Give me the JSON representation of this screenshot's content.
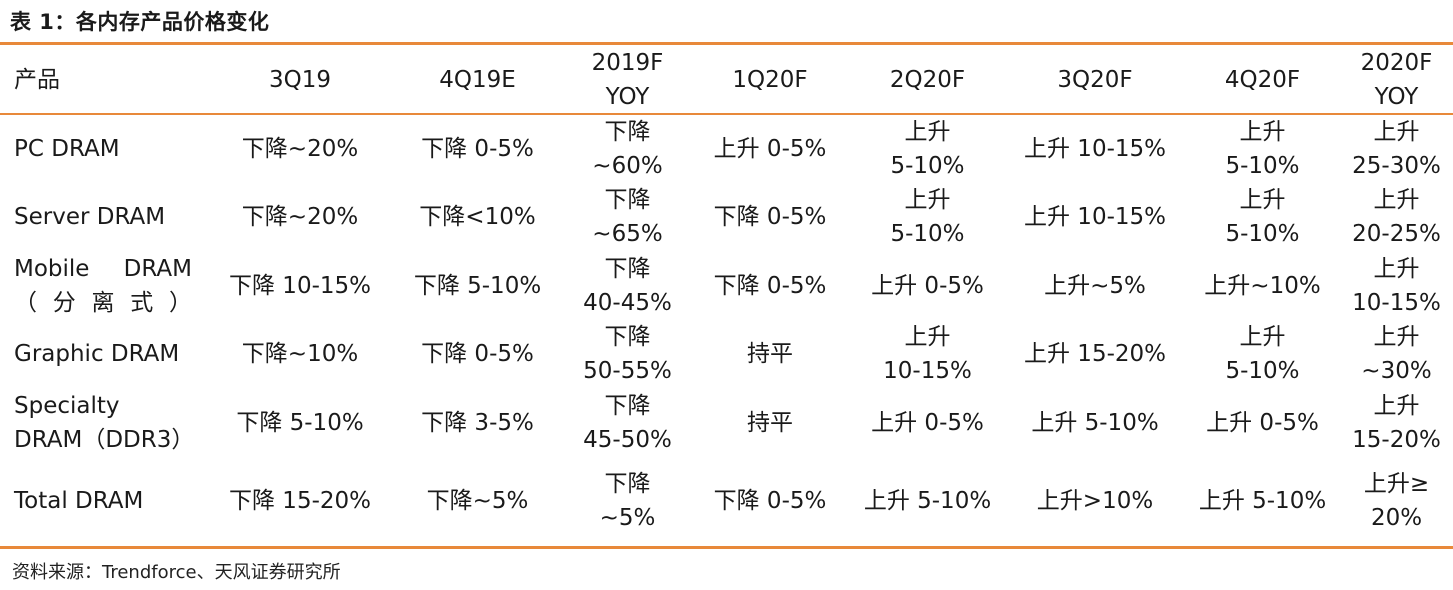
{
  "title": "表 1：各内存产品价格变化",
  "source": "资料来源：Trendforce、天风证券研究所",
  "columns": [
    "产品",
    "3Q19",
    "4Q19E",
    [
      "2019F",
      "YOY"
    ],
    "1Q20F",
    "2Q20F",
    "3Q20F",
    "4Q20F",
    [
      "2020F",
      "YOY"
    ]
  ],
  "rows": [
    {
      "product": [
        "PC DRAM"
      ],
      "cells": [
        [
          "下降~20%"
        ],
        [
          "下降 0-5%"
        ],
        [
          "下降",
          "~60%"
        ],
        [
          "上升 0-5%"
        ],
        [
          "上升",
          "5-10%"
        ],
        [
          "上升 10-15%"
        ],
        [
          "上升",
          "5-10%"
        ],
        [
          "上升",
          "25-30%"
        ]
      ]
    },
    {
      "product": [
        "Server DRAM"
      ],
      "cells": [
        [
          "下降~20%"
        ],
        [
          "下降<10%"
        ],
        [
          "下降",
          "~65%"
        ],
        [
          "下降 0-5%"
        ],
        [
          "上升",
          "5-10%"
        ],
        [
          "上升 10-15%"
        ],
        [
          "上升",
          "5-10%"
        ],
        [
          "上升",
          "20-25%"
        ]
      ]
    },
    {
      "product": [
        "Mobile DRAM",
        "（分离式）"
      ],
      "cells": [
        [
          "下降 10-15%"
        ],
        [
          "下降 5-10%"
        ],
        [
          "下降",
          "40-45%"
        ],
        [
          "下降 0-5%"
        ],
        [
          "上升 0-5%"
        ],
        [
          "上升~5%"
        ],
        [
          "上升~10%"
        ],
        [
          "上升",
          "10-15%"
        ]
      ]
    },
    {
      "product": [
        "Graphic DRAM"
      ],
      "cells": [
        [
          "下降~10%"
        ],
        [
          "下降 0-5%"
        ],
        [
          "下降",
          "50-55%"
        ],
        [
          "持平"
        ],
        [
          "上升",
          "10-15%"
        ],
        [
          "上升 15-20%"
        ],
        [
          "上升",
          "5-10%"
        ],
        [
          "上升",
          "~30%"
        ]
      ]
    },
    {
      "product": [
        "Specialty",
        "DRAM（DDR3）"
      ],
      "cells": [
        [
          "下降 5-10%"
        ],
        [
          "下降 3-5%"
        ],
        [
          "下降",
          "45-50%"
        ],
        [
          "持平"
        ],
        [
          "上升 0-5%"
        ],
        [
          "上升 5-10%"
        ],
        [
          "上升 0-5%"
        ],
        [
          "上升",
          "15-20%"
        ]
      ]
    },
    {
      "product": [
        "Total DRAM"
      ],
      "cells": [
        [
          "下降 15-20%"
        ],
        [
          "下降~5%"
        ],
        [
          "下降",
          "~5%"
        ],
        [
          "下降 0-5%"
        ],
        [
          "上升 5-10%"
        ],
        [
          "上升>10%"
        ],
        [
          "上升 5-10%"
        ],
        [
          "上升≥",
          "20%"
        ]
      ]
    }
  ],
  "colors": {
    "accent_rule": "#e8893a",
    "text": "#1a1a1a"
  }
}
